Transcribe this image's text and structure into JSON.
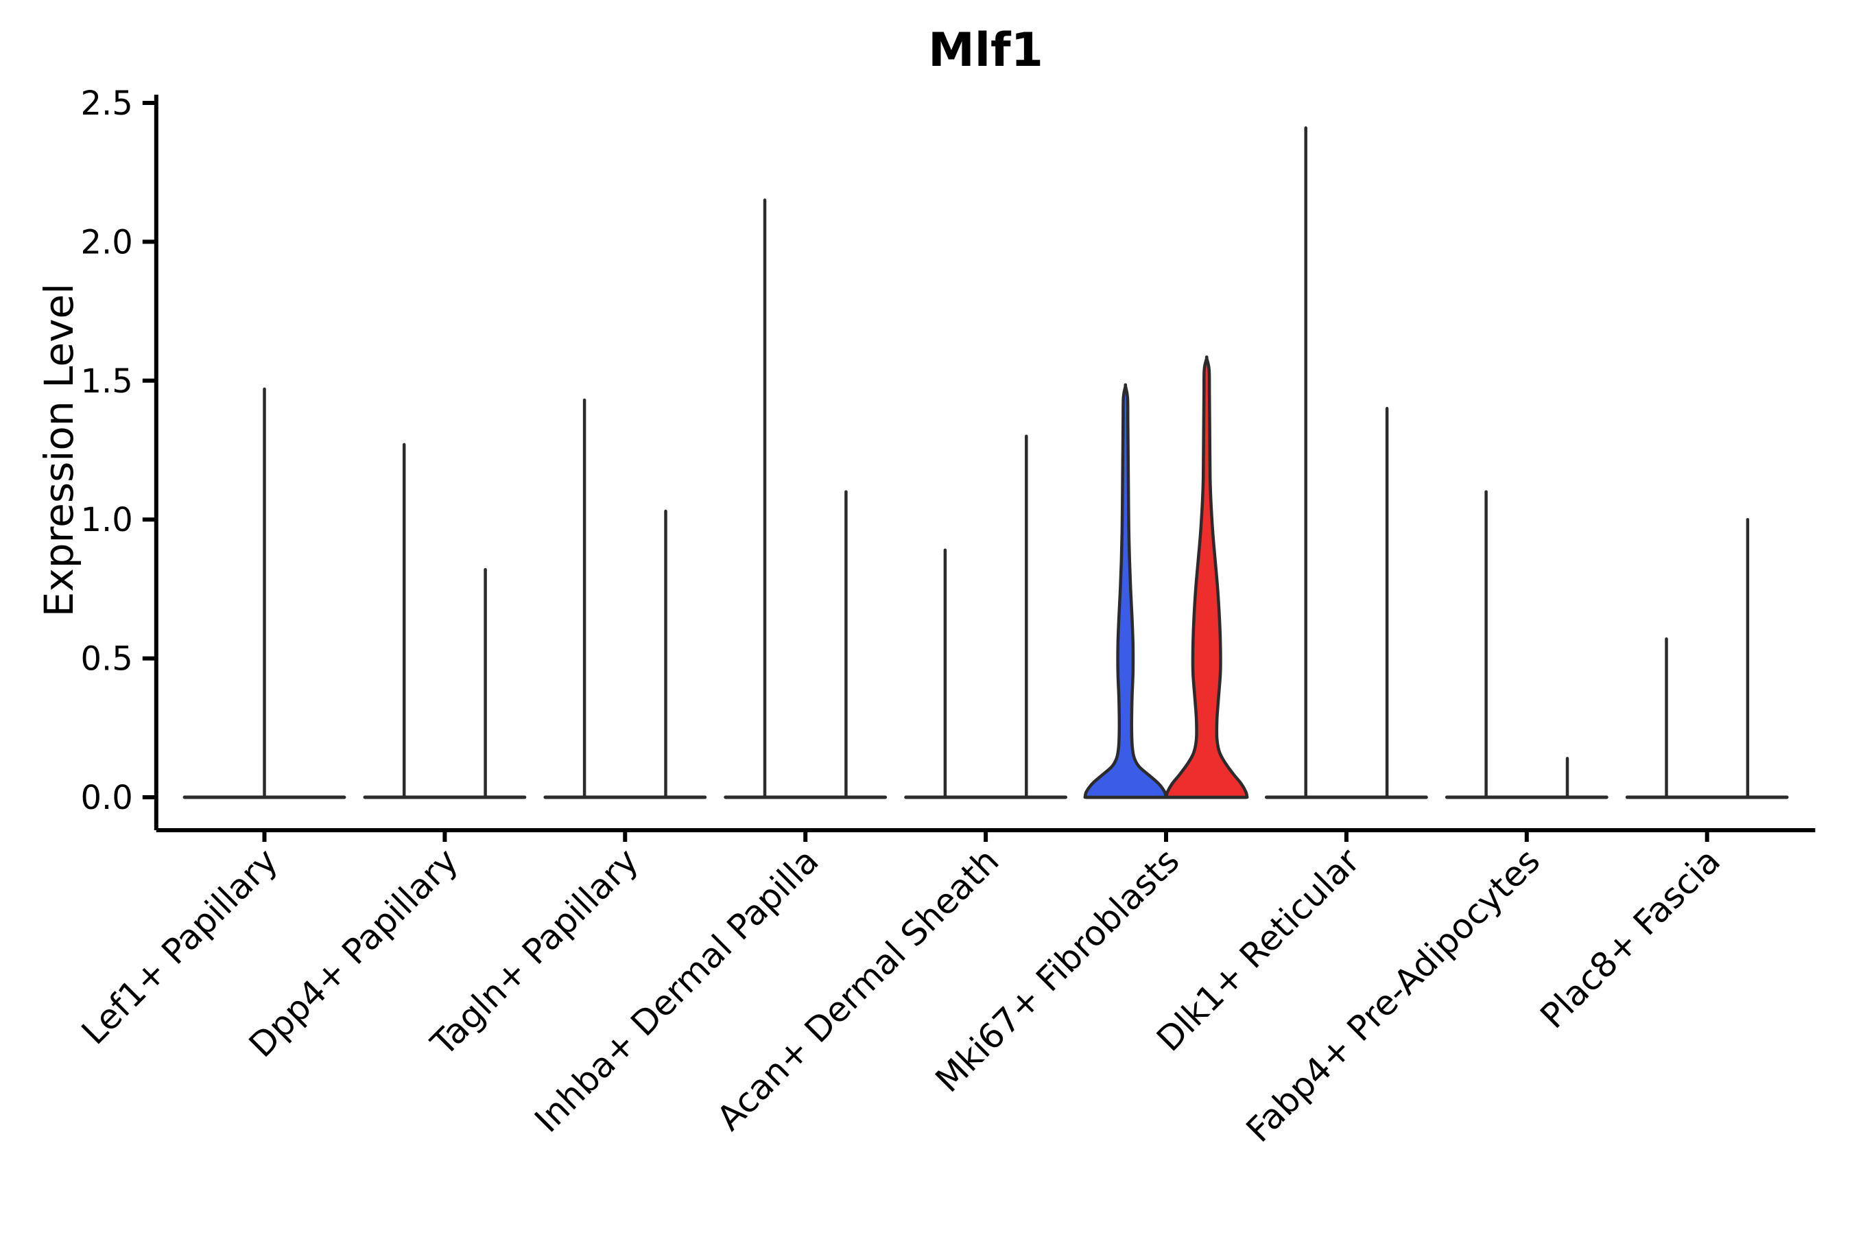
{
  "chart_data": {
    "type": "violin",
    "title": "Mlf1",
    "ylabel": "Expression Level",
    "ytick_labels": [
      "0.0",
      "0.5",
      "1.0",
      "1.5",
      "2.0",
      "2.5"
    ],
    "ytick_values": [
      0,
      0.5,
      1.0,
      1.5,
      2.0,
      2.5
    ],
    "ylim": [
      -0.12,
      2.53
    ],
    "legend_position": "none",
    "grid": false,
    "categories": [
      "Lef1+ Papillary",
      "Dpp4+ Papillary",
      "Tagln+ Papillary",
      "Inhba+ Dermal Papilla",
      "Acan+ Dermal Sheath",
      "Mki67+ Fibroblasts",
      "Dlk1+ Reticular",
      "Fabp4+ Pre-Adipocytes",
      "Plac8+ Fascia"
    ],
    "violins": [
      {
        "category": "Lef1+ Papillary",
        "items": [
          {
            "max": 1.47,
            "single": true,
            "fill": "none"
          }
        ]
      },
      {
        "category": "Dpp4+ Papillary",
        "items": [
          {
            "max": 1.27,
            "fill": "none"
          },
          {
            "max": 0.82,
            "fill": "none"
          }
        ]
      },
      {
        "category": "Tagln+ Papillary",
        "items": [
          {
            "max": 1.43,
            "fill": "none"
          },
          {
            "max": 1.03,
            "fill": "none"
          }
        ]
      },
      {
        "category": "Inhba+ Dermal Papilla",
        "items": [
          {
            "max": 2.15,
            "fill": "none"
          },
          {
            "max": 1.1,
            "fill": "none"
          }
        ]
      },
      {
        "category": "Acan+ Dermal Sheath",
        "items": [
          {
            "max": 0.89,
            "fill": "none"
          },
          {
            "max": 1.3,
            "fill": "none"
          }
        ]
      },
      {
        "category": "Mki67+ Fibroblasts",
        "items": [
          {
            "max": 1.48,
            "fill": "#3B5CE6",
            "profile": [
              [
                0,
                59
              ],
              [
                0.02,
                57
              ],
              [
                0.05,
                48
              ],
              [
                0.08,
                34
              ],
              [
                0.11,
                20
              ],
              [
                0.14,
                13
              ],
              [
                0.18,
                10
              ],
              [
                0.25,
                9
              ],
              [
                0.35,
                9.5
              ],
              [
                0.45,
                11
              ],
              [
                0.55,
                11
              ],
              [
                0.65,
                9.5
              ],
              [
                0.75,
                7.5
              ],
              [
                0.85,
                6
              ],
              [
                0.95,
                5
              ],
              [
                1.05,
                4.5
              ],
              [
                1.2,
                4
              ],
              [
                1.35,
                3.5
              ],
              [
                1.44,
                3
              ],
              [
                1.48,
                0
              ]
            ]
          },
          {
            "max": 1.58,
            "fill": "#EE2D2D",
            "profile": [
              [
                0,
                59
              ],
              [
                0.02,
                57
              ],
              [
                0.05,
                50
              ],
              [
                0.08,
                40
              ],
              [
                0.12,
                28
              ],
              [
                0.16,
                19
              ],
              [
                0.21,
                15
              ],
              [
                0.28,
                15
              ],
              [
                0.35,
                17
              ],
              [
                0.45,
                20
              ],
              [
                0.55,
                20
              ],
              [
                0.65,
                18.5
              ],
              [
                0.75,
                16
              ],
              [
                0.85,
                12.5
              ],
              [
                0.95,
                9
              ],
              [
                1.05,
                6.5
              ],
              [
                1.15,
                5
              ],
              [
                1.3,
                4.5
              ],
              [
                1.45,
                4
              ],
              [
                1.54,
                3.5
              ],
              [
                1.58,
                0
              ]
            ]
          }
        ]
      },
      {
        "category": "Dlk1+ Reticular",
        "items": [
          {
            "max": 2.41,
            "fill": "none"
          },
          {
            "max": 1.4,
            "fill": "none"
          }
        ]
      },
      {
        "category": "Fabp4+ Pre-Adipocytes",
        "items": [
          {
            "max": 1.1,
            "fill": "none"
          },
          {
            "max": 0.14,
            "fill": "none"
          }
        ]
      },
      {
        "category": "Plac8+ Fascia",
        "items": [
          {
            "max": 0.57,
            "fill": "none"
          },
          {
            "max": 1.0,
            "fill": "none"
          }
        ]
      }
    ],
    "style": {
      "violin_line_color": "#2B2B2B",
      "axis_color": "#000000",
      "group1_color": "#3B5CE6",
      "group2_color": "#EE2D2D",
      "background": "#ffffff"
    }
  }
}
